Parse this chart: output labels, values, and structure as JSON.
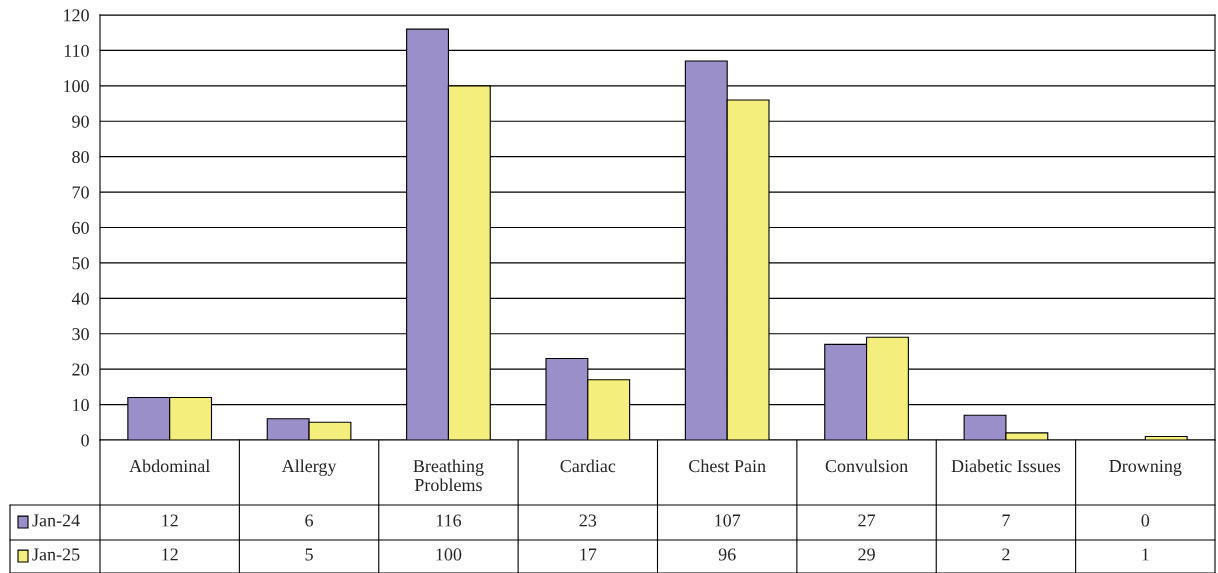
{
  "chart_data": {
    "type": "bar",
    "categories": [
      "Abdominal",
      "Allergy",
      "Breathing Problems",
      "Cardiac",
      "Chest Pain",
      "Convulsion",
      "Diabetic Issues",
      "Drowning"
    ],
    "series": [
      {
        "name": "Jan-24",
        "color": "#9b8fc9",
        "values": [
          12,
          6,
          116,
          23,
          107,
          27,
          7,
          0
        ]
      },
      {
        "name": "Jan-25",
        "color": "#f4ee7c",
        "values": [
          12,
          5,
          100,
          17,
          96,
          29,
          2,
          1
        ]
      }
    ],
    "ylim": [
      0,
      120
    ],
    "yticks": [
      0,
      10,
      20,
      30,
      40,
      50,
      60,
      70,
      80,
      90,
      100,
      110,
      120
    ],
    "grid": "y",
    "data_labels": true,
    "legend": "bottom left"
  }
}
